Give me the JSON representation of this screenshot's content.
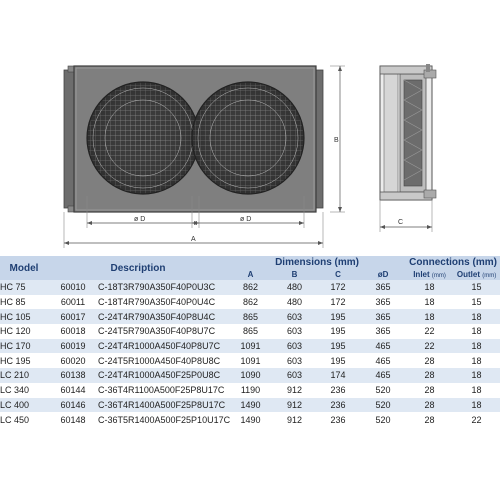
{
  "drawing": {
    "dim_a": "A",
    "dim_b": "B",
    "dim_c": "C",
    "dim_d": "ø D"
  },
  "table": {
    "headers": {
      "model": "Model",
      "description": "Description",
      "dimensions": "Dimensions (mm)",
      "connections": "Connections (mm)",
      "a": "A",
      "b": "B",
      "c": "C",
      "d": "øD",
      "inlet": "Inlet",
      "inlet_unit": "(mm)",
      "outlet": "Outlet",
      "outlet_unit": "(mm)"
    },
    "rows": [
      {
        "model": "HC  75",
        "code": "60010",
        "description": "C-18T3R790A350F40P0U3C",
        "a": "862",
        "b": "480",
        "c": "172",
        "d": "365",
        "inlet": "18",
        "outlet": "15"
      },
      {
        "model": "HC  85",
        "code": "60011",
        "description": "C-18T4R790A350F40P0U4C",
        "a": "862",
        "b": "480",
        "c": "172",
        "d": "365",
        "inlet": "18",
        "outlet": "15"
      },
      {
        "model": "HC 105",
        "code": "60017",
        "description": "C-24T4R790A350F40P8U4C",
        "a": "865",
        "b": "603",
        "c": "195",
        "d": "365",
        "inlet": "18",
        "outlet": "18"
      },
      {
        "model": "HC 120",
        "code": "60018",
        "description": "C-24T5R790A350F40P8U7C",
        "a": "865",
        "b": "603",
        "c": "195",
        "d": "365",
        "inlet": "22",
        "outlet": "18"
      },
      {
        "model": "HC 170",
        "code": "60019",
        "description": "C-24T4R1000A450F40P8U7C",
        "a": "1091",
        "b": "603",
        "c": "195",
        "d": "465",
        "inlet": "22",
        "outlet": "18"
      },
      {
        "model": "HC 195",
        "code": "60020",
        "description": "C-24T5R1000A450F40P8U8C",
        "a": "1091",
        "b": "603",
        "c": "195",
        "d": "465",
        "inlet": "28",
        "outlet": "18"
      },
      {
        "model": "LC 210",
        "code": "60138",
        "description": "C-24T4R1000A450F25P0U8C",
        "a": "1090",
        "b": "603",
        "c": "174",
        "d": "465",
        "inlet": "28",
        "outlet": "18"
      },
      {
        "model": "LC 340",
        "code": "60144",
        "description": "C-36T4R1100A500F25P8U17C",
        "a": "1190",
        "b": "912",
        "c": "236",
        "d": "520",
        "inlet": "28",
        "outlet": "18"
      },
      {
        "model": "LC 400",
        "code": "60146",
        "description": "C-36T4R1400A500F25P8U17C",
        "a": "1490",
        "b": "912",
        "c": "236",
        "d": "520",
        "inlet": "28",
        "outlet": "18"
      },
      {
        "model": "LC 450",
        "code": "60148",
        "description": "C-36T5R1400A500F25P10U17C",
        "a": "1490",
        "b": "912",
        "c": "236",
        "d": "520",
        "inlet": "28",
        "outlet": "22"
      }
    ]
  }
}
